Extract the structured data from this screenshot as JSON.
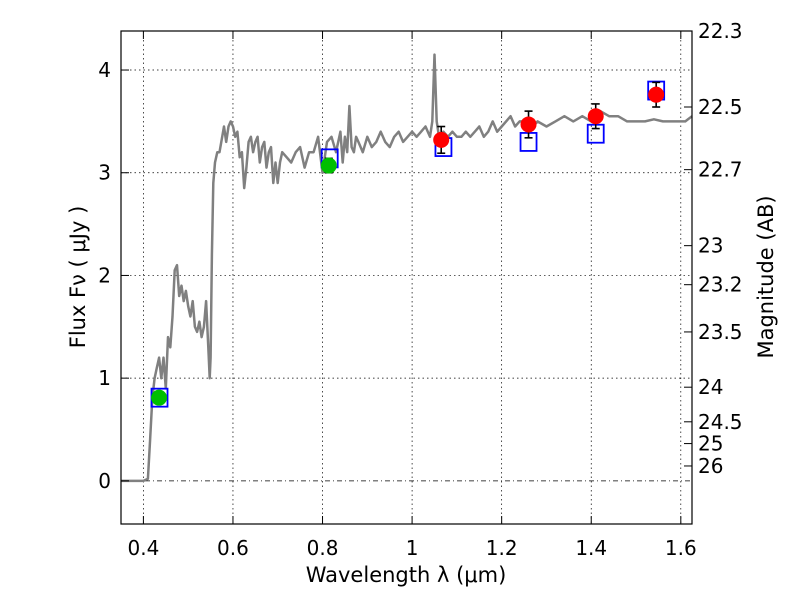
{
  "chart_data": {
    "type": "scatter",
    "xlabel": "Wavelength  λ (μm)",
    "ylabel": "Flux  Fν  ( μJy )",
    "y2label": "Magnitude (AB)",
    "xlim": [
      0.35,
      1.625
    ],
    "ylim": [
      -0.42,
      4.38
    ],
    "grid": true,
    "x_ticks": [
      0.4,
      0.6,
      0.8,
      1.0,
      1.2,
      1.4,
      1.6
    ],
    "x_tick_labels": [
      "0.4",
      "0.6",
      "0.8",
      "1",
      "1.2",
      "1.4",
      "1.6"
    ],
    "y_ticks": [
      0,
      1,
      2,
      3,
      4
    ],
    "y_tick_labels": [
      "0",
      "1",
      "2",
      "3",
      "4"
    ],
    "y2_ticks": [
      {
        "label": "22.3",
        "flux": 4.38
      },
      {
        "label": "22.5",
        "flux": 3.64
      },
      {
        "label": "22.7",
        "flux": 3.03
      },
      {
        "label": "23",
        "flux": 2.29
      },
      {
        "label": "23.2",
        "flux": 1.91
      },
      {
        "label": "23.5",
        "flux": 1.45
      },
      {
        "label": "24",
        "flux": 0.912
      },
      {
        "label": "24.5",
        "flux": 0.575
      },
      {
        "label": "25",
        "flux": 0.363
      },
      {
        "label": "26",
        "flux": 0.145
      }
    ],
    "colors": {
      "model": "#808080",
      "green": "#00bf00",
      "red": "#ff0000",
      "box": "#0000ff",
      "error": "#000000"
    },
    "model_spectrum": {
      "x": [
        0.35,
        0.4,
        0.41,
        0.415,
        0.42,
        0.425,
        0.43,
        0.435,
        0.44,
        0.445,
        0.45,
        0.455,
        0.46,
        0.465,
        0.47,
        0.475,
        0.48,
        0.485,
        0.49,
        0.495,
        0.5,
        0.505,
        0.51,
        0.515,
        0.52,
        0.525,
        0.53,
        0.535,
        0.54,
        0.545,
        0.548,
        0.55,
        0.553,
        0.556,
        0.56,
        0.565,
        0.57,
        0.58,
        0.585,
        0.59,
        0.595,
        0.6,
        0.605,
        0.61,
        0.615,
        0.62,
        0.625,
        0.63,
        0.635,
        0.64,
        0.645,
        0.65,
        0.655,
        0.66,
        0.665,
        0.67,
        0.675,
        0.68,
        0.685,
        0.69,
        0.695,
        0.7,
        0.705,
        0.71,
        0.72,
        0.73,
        0.74,
        0.75,
        0.76,
        0.77,
        0.78,
        0.79,
        0.8,
        0.81,
        0.82,
        0.83,
        0.84,
        0.845,
        0.85,
        0.855,
        0.86,
        0.865,
        0.87,
        0.875,
        0.88,
        0.89,
        0.9,
        0.91,
        0.92,
        0.93,
        0.94,
        0.95,
        0.96,
        0.97,
        0.98,
        0.99,
        1.0,
        1.01,
        1.02,
        1.03,
        1.04,
        1.045,
        1.05,
        1.055,
        1.06,
        1.07,
        1.08,
        1.09,
        1.1,
        1.11,
        1.12,
        1.13,
        1.14,
        1.15,
        1.16,
        1.17,
        1.18,
        1.19,
        1.2,
        1.21,
        1.22,
        1.23,
        1.24,
        1.25,
        1.26,
        1.27,
        1.28,
        1.3,
        1.32,
        1.34,
        1.36,
        1.38,
        1.4,
        1.42,
        1.44,
        1.46,
        1.48,
        1.5,
        1.52,
        1.54,
        1.56,
        1.58,
        1.6,
        1.61,
        1.625
      ],
      "y": [
        0,
        0,
        0.02,
        0.4,
        0.8,
        1.0,
        1.1,
        1.2,
        1.0,
        1.2,
        0.9,
        1.4,
        1.3,
        1.6,
        2.05,
        2.1,
        1.8,
        1.9,
        1.75,
        1.85,
        1.7,
        1.6,
        1.75,
        1.5,
        1.45,
        1.55,
        1.4,
        1.5,
        1.75,
        1.3,
        1.0,
        1.2,
        2.2,
        2.9,
        3.1,
        3.2,
        3.2,
        3.45,
        3.3,
        3.45,
        3.5,
        3.45,
        3.35,
        3.4,
        3.15,
        3.2,
        2.85,
        3.05,
        3.3,
        3.35,
        3.2,
        3.3,
        3.35,
        3.1,
        3.25,
        3.3,
        3.05,
        3.2,
        3.25,
        2.9,
        3.1,
        2.9,
        3.1,
        3.2,
        3.15,
        3.1,
        3.2,
        3.25,
        3.05,
        3.2,
        3.2,
        3.35,
        3.0,
        3.3,
        3.35,
        3.2,
        3.4,
        3.1,
        3.35,
        3.2,
        3.65,
        3.25,
        3.2,
        3.35,
        3.3,
        3.2,
        3.35,
        3.25,
        3.3,
        3.4,
        3.3,
        3.25,
        3.35,
        3.4,
        3.3,
        3.35,
        3.4,
        3.35,
        3.4,
        3.45,
        3.35,
        3.5,
        4.15,
        3.5,
        3.35,
        3.4,
        3.35,
        3.4,
        3.35,
        3.35,
        3.4,
        3.35,
        3.4,
        3.45,
        3.35,
        3.4,
        3.5,
        3.4,
        3.45,
        3.5,
        3.55,
        3.45,
        3.5,
        3.5,
        3.45,
        3.45,
        3.5,
        3.45,
        3.5,
        3.55,
        3.5,
        3.55,
        3.5,
        3.6,
        3.55,
        3.55,
        3.5,
        3.5,
        3.5,
        3.52,
        3.5,
        3.5,
        3.5,
        3.5,
        3.55
      ]
    },
    "observed_green": [
      {
        "x": 0.435,
        "y": 0.81,
        "err": 0.04
      },
      {
        "x": 0.814,
        "y": 3.07,
        "err": 0.07
      }
    ],
    "observed_red": [
      {
        "x": 1.065,
        "y": 3.32,
        "err": 0.13
      },
      {
        "x": 1.26,
        "y": 3.47,
        "err": 0.13
      },
      {
        "x": 1.41,
        "y": 3.55,
        "err": 0.12
      },
      {
        "x": 1.545,
        "y": 3.76,
        "err": 0.12
      }
    ],
    "model_photometry": [
      {
        "x": 0.436,
        "y": 0.81
      },
      {
        "x": 0.816,
        "y": 3.14
      },
      {
        "x": 1.07,
        "y": 3.25
      },
      {
        "x": 1.26,
        "y": 3.3
      },
      {
        "x": 1.41,
        "y": 3.38
      },
      {
        "x": 1.545,
        "y": 3.8
      }
    ]
  }
}
